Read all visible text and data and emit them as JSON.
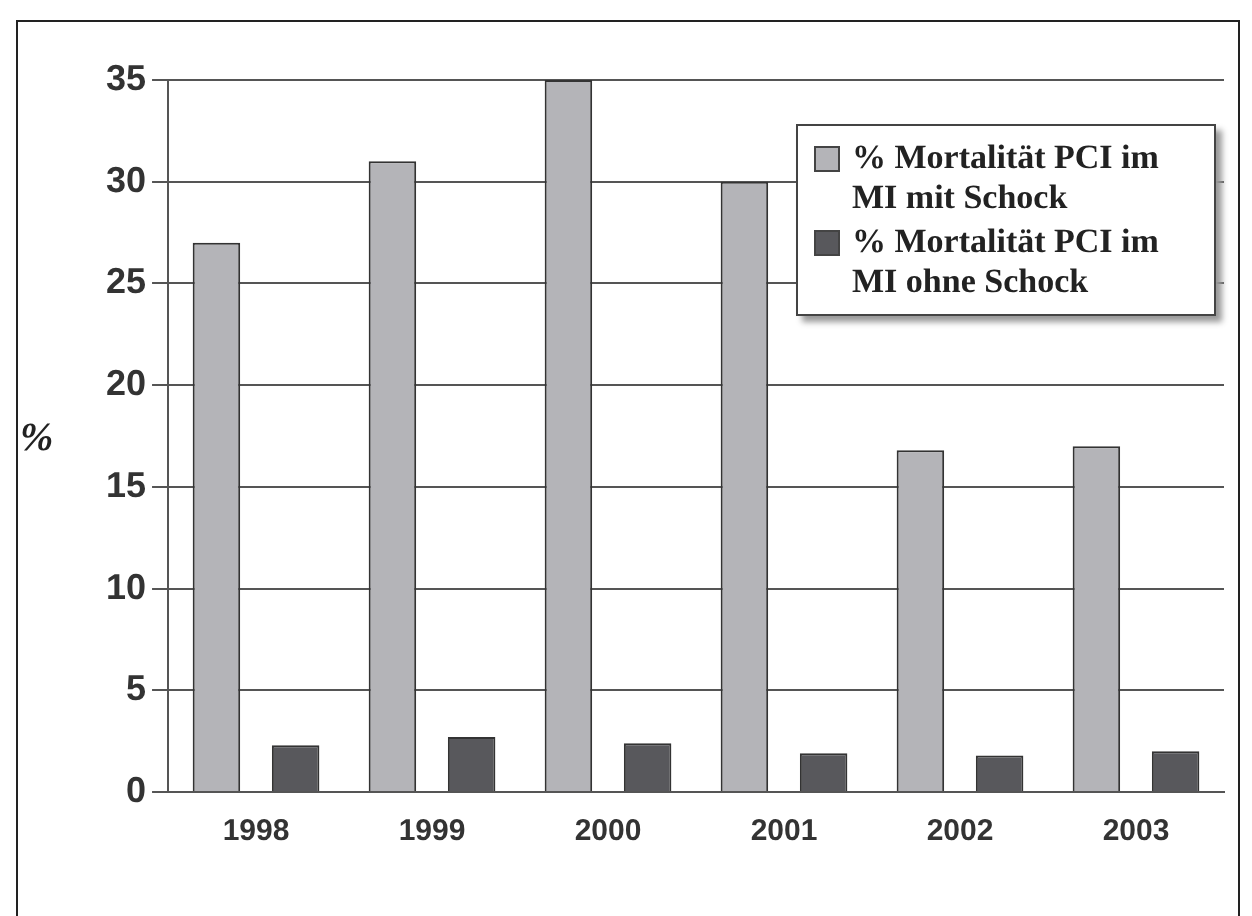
{
  "chart_data": {
    "type": "bar",
    "ylabel": "%",
    "categories": [
      "1998",
      "1999",
      "2000",
      "2001",
      "2002",
      "2003"
    ],
    "series": [
      {
        "name": "% Mortalität PCI im MI mit Schock",
        "color": "#b4b4b8",
        "values": [
          27,
          31,
          35,
          30,
          16.8,
          17
        ]
      },
      {
        "name": "% Mortalität PCI im MI ohne Schock",
        "color": "#58585c",
        "values": [
          2.3,
          2.7,
          2.4,
          1.9,
          1.8,
          2.0
        ]
      }
    ],
    "ylim": [
      0,
      35
    ],
    "yticks": [
      0,
      5,
      10,
      15,
      20,
      25,
      30,
      35
    ],
    "grid": "y",
    "legend": "top right"
  }
}
